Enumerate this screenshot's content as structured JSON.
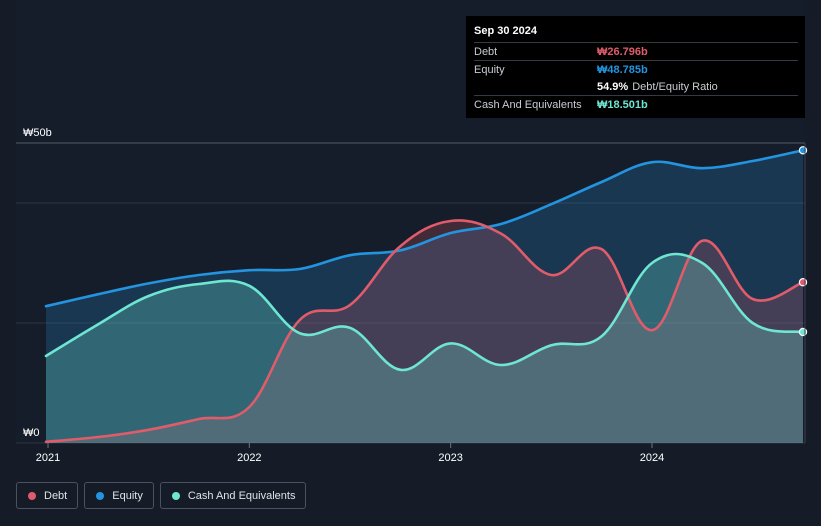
{
  "tooltip": {
    "date": "Sep 30 2024",
    "debt_label": "Debt",
    "debt_value": "₩26.796b",
    "equity_label": "Equity",
    "equity_value": "₩48.785b",
    "ratio_value": "54.9%",
    "ratio_label": "Debt/Equity Ratio",
    "cash_label": "Cash And Equivalents",
    "cash_value": "₩18.501b"
  },
  "legend": {
    "debt": "Debt",
    "equity": "Equity",
    "cash": "Cash And Equivalents"
  },
  "colors": {
    "background": "#151c28",
    "debt": "#e05c6a",
    "equity": "#2394df",
    "cash": "#6ee6d2"
  },
  "chart_data": {
    "type": "area",
    "title": "",
    "xlabel": "",
    "ylabel": "",
    "ylim": [
      0,
      50
    ],
    "y_tick_labels": [
      {
        "value": 0,
        "label": "₩0"
      },
      {
        "value": 50,
        "label": "₩50b"
      }
    ],
    "x_ticks": [
      {
        "value": 2021.0,
        "label": "2021"
      },
      {
        "value": 2022.0,
        "label": "2022"
      },
      {
        "value": 2023.0,
        "label": "2023"
      },
      {
        "value": 2024.0,
        "label": "2024"
      }
    ],
    "grid": true,
    "series": [
      {
        "name": "Equity",
        "key": "equity",
        "x": [
          2020.99,
          2021.25,
          2021.5,
          2021.75,
          2022.0,
          2022.25,
          2022.5,
          2022.75,
          2023.0,
          2023.25,
          2023.5,
          2023.75,
          2024.0,
          2024.25,
          2024.5,
          2024.75
        ],
        "values": [
          22.8,
          24.8,
          26.6,
          28.0,
          28.8,
          29.0,
          31.3,
          32.1,
          35.0,
          36.5,
          39.8,
          43.5,
          46.8,
          45.8,
          47.0,
          48.785
        ]
      },
      {
        "name": "Debt",
        "key": "debt",
        "x": [
          2020.99,
          2021.25,
          2021.5,
          2021.75,
          2022.0,
          2022.25,
          2022.5,
          2022.75,
          2023.0,
          2023.25,
          2023.5,
          2023.75,
          2024.0,
          2024.25,
          2024.5,
          2024.75
        ],
        "values": [
          0.2,
          1.0,
          2.2,
          4.0,
          6.0,
          20.5,
          23.0,
          32.8,
          37.0,
          34.9,
          28.0,
          32.3,
          18.8,
          33.7,
          24.0,
          26.796
        ]
      },
      {
        "name": "Cash And Equivalents",
        "key": "cash",
        "x": [
          2020.99,
          2021.25,
          2021.5,
          2021.75,
          2022.0,
          2022.25,
          2022.5,
          2022.75,
          2023.0,
          2023.25,
          2023.5,
          2023.75,
          2024.0,
          2024.25,
          2024.5,
          2024.75
        ],
        "values": [
          14.5,
          19.8,
          24.5,
          26.5,
          26.2,
          18.3,
          19.2,
          12.2,
          16.6,
          13.0,
          16.3,
          17.8,
          30.0,
          30.0,
          20.0,
          18.501
        ]
      }
    ]
  }
}
